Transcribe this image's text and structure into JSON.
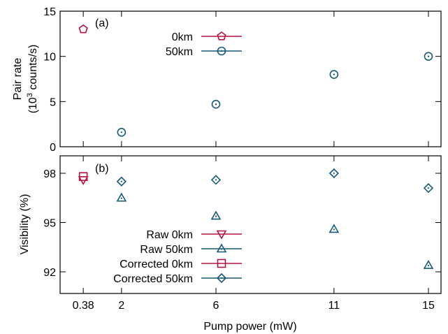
{
  "xlabel": "Pump power (mW)",
  "x_ticks": [
    {
      "value": 0.38,
      "label": "0.38"
    },
    {
      "value": 2,
      "label": "2"
    },
    {
      "value": 6,
      "label": "6"
    },
    {
      "value": 11,
      "label": "11"
    },
    {
      "value": 15,
      "label": "15"
    }
  ],
  "colors": {
    "red": "#b5123f",
    "blue": "#165a78"
  },
  "chart_data": [
    {
      "type": "scatter",
      "panel_label": "(a)",
      "title": "",
      "ylabel_line1": "Pair rate",
      "ylabel_line2_base": "(10",
      "ylabel_line2_sup": "3",
      "ylabel_line2_rest": " counts/s)",
      "ylim": [
        0,
        15
      ],
      "y_ticks": [
        {
          "value": 0,
          "label": "0"
        },
        {
          "value": 5,
          "label": "5"
        },
        {
          "value": 10,
          "label": "10"
        },
        {
          "value": 15,
          "label": "15"
        }
      ],
      "grid": false,
      "legend_position": "top-center",
      "series": [
        {
          "name": "0km",
          "marker": "pentagon",
          "color": "#b5123f",
          "x": [
            0.38
          ],
          "y": [
            13.0
          ]
        },
        {
          "name": "50km",
          "marker": "circle",
          "color": "#165a78",
          "x": [
            2,
            6,
            11,
            15
          ],
          "y": [
            1.6,
            4.7,
            8.0,
            10.0
          ]
        }
      ]
    },
    {
      "type": "scatter",
      "panel_label": "(b)",
      "title": "",
      "ylabel": "Visibility (%)",
      "ylim": [
        91.0,
        99.0
      ],
      "y_ticks": [
        {
          "value": 92,
          "label": "92"
        },
        {
          "value": 95,
          "label": "95"
        },
        {
          "value": 98,
          "label": "98"
        }
      ],
      "grid": false,
      "legend_position": "bottom-center",
      "series": [
        {
          "name": "Raw 0km",
          "marker": "triangle-down",
          "color": "#b5123f",
          "x": [
            0.38
          ],
          "y": [
            97.6
          ]
        },
        {
          "name": "Raw 50km",
          "marker": "triangle-up",
          "color": "#165a78",
          "x": [
            2,
            6,
            11,
            15
          ],
          "y": [
            96.5,
            95.4,
            94.6,
            92.4
          ]
        },
        {
          "name": "Corrected 0km",
          "marker": "square",
          "color": "#b5123f",
          "x": [
            0.38
          ],
          "y": [
            97.8
          ]
        },
        {
          "name": "Corrected 50km",
          "marker": "diamond",
          "color": "#165a78",
          "x": [
            2,
            6,
            11,
            15
          ],
          "y": [
            97.5,
            97.6,
            98.0,
            97.1
          ]
        }
      ]
    }
  ]
}
